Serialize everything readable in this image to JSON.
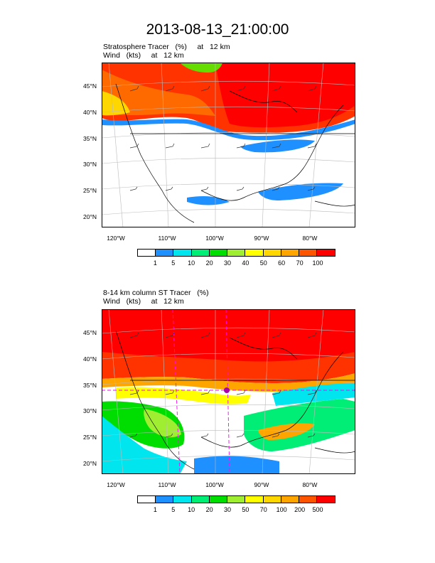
{
  "title": "2013-08-13_21:00:00",
  "panels": [
    {
      "line1": "Stratosphere Tracer   (%)     at   12 km",
      "line2": "Wind   (kts)     at   12 km",
      "lat_labels": [
        "45°N",
        "40°N",
        "35°N",
        "30°N",
        "25°N",
        "20°N"
      ],
      "lon_labels": [
        "120°W",
        "110°W",
        "100°W",
        "90°W",
        "80°W"
      ],
      "colorbar_labels": [
        "1",
        "5",
        "10",
        "20",
        "30",
        "40",
        "50",
        "60",
        "70",
        "100"
      ],
      "colorbar_colors": [
        "#ffffff",
        "#1e90ff",
        "#00e5ee",
        "#00ee76",
        "#00dd00",
        "#a0ee32",
        "#ffff00",
        "#ffd700",
        "#ffa500",
        "#ff5500",
        "#ff0000"
      ]
    },
    {
      "line1": "8-14 km column ST Tracer   (%)",
      "line2": "Wind   (kts)     at   12 km",
      "lat_labels": [
        "45°N",
        "40°N",
        "35°N",
        "30°N",
        "25°N",
        "20°N"
      ],
      "lon_labels": [
        "120°W",
        "110°W",
        "100°W",
        "90°W",
        "80°W"
      ],
      "colorbar_labels": [
        "1",
        "5",
        "10",
        "20",
        "30",
        "50",
        "70",
        "100",
        "200",
        "500"
      ],
      "colorbar_colors": [
        "#ffffff",
        "#1e90ff",
        "#00e5ee",
        "#00ee76",
        "#00dd00",
        "#a0ee32",
        "#ffff00",
        "#ffd700",
        "#ffa500",
        "#ff5500",
        "#ff0000"
      ]
    }
  ]
}
